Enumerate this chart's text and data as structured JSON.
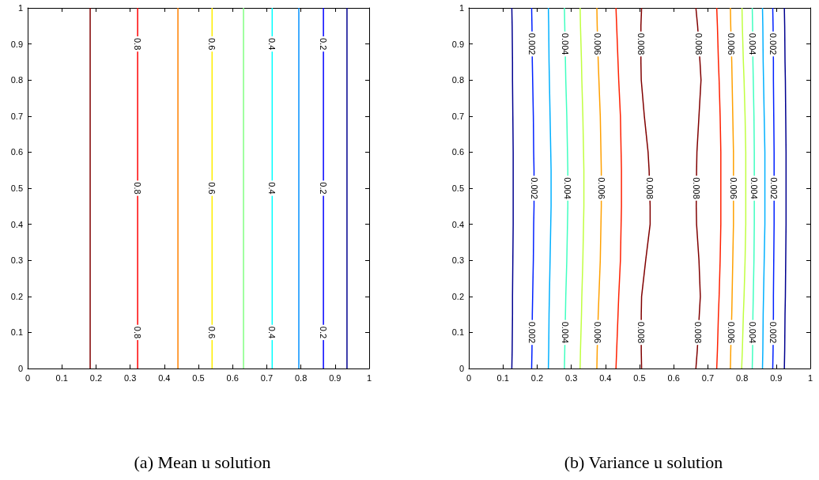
{
  "chart_data": [
    {
      "type": "line",
      "title": "(a) Mean u solution",
      "xlim": [
        0,
        1
      ],
      "ylim": [
        0,
        1
      ],
      "xticks": [
        0,
        0.1,
        0.2,
        0.3,
        0.4,
        0.5,
        0.6,
        0.7,
        0.8,
        0.9,
        1
      ],
      "yticks": [
        0,
        0.1,
        0.2,
        0.3,
        0.4,
        0.5,
        0.6,
        0.7,
        0.8,
        0.9,
        1
      ],
      "grid": false,
      "legend": false,
      "series": [
        {
          "color": "#800000",
          "x": [
            0.183,
            0.183,
            0.183,
            0.183,
            0.183,
            0.183,
            0.183,
            0.183
          ],
          "values": [
            0,
            0.05,
            0.15,
            0.45,
            0.55,
            0.85,
            0.95,
            1
          ]
        },
        {
          "name": "0.8",
          "color": "#ff0000",
          "x": [
            0.322,
            0.322,
            0.322,
            0.322,
            0.322,
            0.322,
            0.322,
            0.322
          ],
          "values": [
            0,
            0.05,
            0.15,
            0.45,
            0.55,
            0.85,
            0.95,
            1
          ]
        },
        {
          "color": "#ff8000",
          "x": [
            0.44,
            0.44,
            0.44,
            0.44,
            0.44,
            0.44,
            0.44,
            0.44
          ],
          "values": [
            0,
            0.05,
            0.15,
            0.45,
            0.55,
            0.85,
            0.95,
            1
          ]
        },
        {
          "name": "0.6",
          "color": "#ffee00",
          "x": [
            0.54,
            0.54,
            0.54,
            0.54,
            0.54,
            0.54,
            0.54,
            0.54
          ],
          "values": [
            0,
            0.05,
            0.15,
            0.45,
            0.55,
            0.85,
            0.95,
            1
          ]
        },
        {
          "color": "#80ff80",
          "x": [
            0.632,
            0.632,
            0.632,
            0.632,
            0.632,
            0.632,
            0.632,
            0.632
          ],
          "values": [
            0,
            0.05,
            0.15,
            0.45,
            0.55,
            0.85,
            0.95,
            1
          ]
        },
        {
          "name": "0.4",
          "color": "#00ffff",
          "x": [
            0.716,
            0.716,
            0.716,
            0.716,
            0.716,
            0.716,
            0.716,
            0.716
          ],
          "values": [
            0,
            0.05,
            0.15,
            0.45,
            0.55,
            0.85,
            0.95,
            1
          ]
        },
        {
          "color": "#0090ff",
          "x": [
            0.794,
            0.794,
            0.794,
            0.794,
            0.794,
            0.794,
            0.794,
            0.794
          ],
          "values": [
            0,
            0.05,
            0.15,
            0.45,
            0.55,
            0.85,
            0.95,
            1
          ]
        },
        {
          "name": "0.2",
          "color": "#0000ff",
          "x": [
            0.866,
            0.866,
            0.866,
            0.866,
            0.866,
            0.866,
            0.866,
            0.866
          ],
          "values": [
            0,
            0.05,
            0.15,
            0.45,
            0.55,
            0.85,
            0.95,
            1
          ]
        },
        {
          "color": "#000090",
          "x": [
            0.935,
            0.935,
            0.935,
            0.935,
            0.935,
            0.935,
            0.935,
            0.935
          ],
          "values": [
            0,
            0.05,
            0.15,
            0.45,
            0.55,
            0.85,
            0.95,
            1
          ]
        }
      ]
    },
    {
      "type": "line",
      "title": "(b) Variance u solution",
      "xlim": [
        0,
        1
      ],
      "ylim": [
        0,
        1
      ],
      "xticks": [
        0,
        0.1,
        0.2,
        0.3,
        0.4,
        0.5,
        0.6,
        0.7,
        0.8,
        0.9,
        1
      ],
      "yticks": [
        0,
        0.1,
        0.2,
        0.3,
        0.4,
        0.5,
        0.6,
        0.7,
        0.8,
        0.9,
        1
      ],
      "grid": false,
      "legend": false,
      "series": [
        {
          "color": "#00008f",
          "x": [
            0.126,
            0.127,
            0.128,
            0.128,
            0.129,
            0.13,
            0.13,
            0.13,
            0.13,
            0.129,
            0.128,
            0.128,
            0.127,
            0.126
          ],
          "values": [
            0,
            0.05,
            0.15,
            0.2,
            0.3,
            0.4,
            0.45,
            0.55,
            0.6,
            0.7,
            0.8,
            0.85,
            0.95,
            1
          ]
        },
        {
          "name": "0.002",
          "color": "#0020ff",
          "x": [
            0.184,
            0.185,
            0.186,
            0.187,
            0.189,
            0.19,
            0.191,
            0.191,
            0.19,
            0.189,
            0.187,
            0.186,
            0.185,
            0.184
          ],
          "values": [
            0,
            0.05,
            0.15,
            0.2,
            0.3,
            0.4,
            0.45,
            0.55,
            0.6,
            0.7,
            0.8,
            0.85,
            0.95,
            1
          ]
        },
        {
          "color": "#00b0ff",
          "x": [
            0.233,
            0.234,
            0.235,
            0.236,
            0.238,
            0.24,
            0.241,
            0.241,
            0.24,
            0.238,
            0.236,
            0.235,
            0.234,
            0.233
          ],
          "values": [
            0,
            0.05,
            0.15,
            0.2,
            0.3,
            0.4,
            0.45,
            0.55,
            0.6,
            0.7,
            0.8,
            0.85,
            0.95,
            1
          ]
        },
        {
          "name": "0.004",
          "color": "#40ffc0",
          "x": [
            0.28,
            0.281,
            0.283,
            0.284,
            0.287,
            0.289,
            0.29,
            0.29,
            0.289,
            0.287,
            0.284,
            0.283,
            0.281,
            0.28
          ],
          "values": [
            0,
            0.05,
            0.15,
            0.2,
            0.3,
            0.4,
            0.45,
            0.55,
            0.6,
            0.7,
            0.8,
            0.85,
            0.95,
            1
          ]
        },
        {
          "color": "#c0ff40",
          "x": [
            0.326,
            0.327,
            0.33,
            0.331,
            0.334,
            0.336,
            0.337,
            0.337,
            0.336,
            0.334,
            0.331,
            0.33,
            0.327,
            0.326
          ],
          "values": [
            0,
            0.05,
            0.15,
            0.2,
            0.3,
            0.4,
            0.45,
            0.55,
            0.6,
            0.7,
            0.8,
            0.85,
            0.95,
            1
          ]
        },
        {
          "name": "0.006",
          "color": "#ffa000",
          "x": [
            0.375,
            0.376,
            0.379,
            0.381,
            0.385,
            0.387,
            0.388,
            0.388,
            0.387,
            0.385,
            0.381,
            0.379,
            0.376,
            0.375
          ],
          "values": [
            0,
            0.05,
            0.15,
            0.2,
            0.3,
            0.4,
            0.45,
            0.55,
            0.6,
            0.7,
            0.8,
            0.85,
            0.95,
            1
          ]
        },
        {
          "color": "#ff2000",
          "x": [
            0.431,
            0.433,
            0.437,
            0.439,
            0.444,
            0.446,
            0.447,
            0.447,
            0.446,
            0.444,
            0.439,
            0.437,
            0.433,
            0.431
          ],
          "values": [
            0,
            0.05,
            0.15,
            0.2,
            0.3,
            0.4,
            0.45,
            0.55,
            0.6,
            0.7,
            0.8,
            0.85,
            0.95,
            1
          ]
        },
        {
          "name": "0.008",
          "color": "#800000",
          "x": [
            0.506,
            0.505,
            0.505,
            0.506,
            0.518,
            0.531,
            0.531,
            0.528,
            0.525,
            0.514,
            0.505,
            0.504,
            0.504,
            0.506
          ],
          "values": [
            0,
            0.05,
            0.15,
            0.2,
            0.3,
            0.4,
            0.45,
            0.55,
            0.6,
            0.7,
            0.8,
            0.85,
            0.95,
            1
          ]
        },
        {
          "name": "0.008",
          "color": "#800000",
          "x": [
            0.665,
            0.669,
            0.675,
            0.678,
            0.674,
            0.667,
            0.666,
            0.667,
            0.668,
            0.674,
            0.68,
            0.677,
            0.67,
            0.665
          ],
          "values": [
            0,
            0.05,
            0.15,
            0.2,
            0.3,
            0.4,
            0.45,
            0.55,
            0.6,
            0.7,
            0.8,
            0.85,
            0.95,
            1
          ]
        },
        {
          "color": "#ff2000",
          "x": [
            0.726,
            0.728,
            0.731,
            0.733,
            0.736,
            0.738,
            0.738,
            0.738,
            0.738,
            0.736,
            0.733,
            0.731,
            0.728,
            0.726
          ],
          "values": [
            0,
            0.05,
            0.15,
            0.2,
            0.3,
            0.4,
            0.45,
            0.55,
            0.6,
            0.7,
            0.8,
            0.85,
            0.95,
            1
          ]
        },
        {
          "name": "0.006",
          "color": "#ffa000",
          "x": [
            0.766,
            0.767,
            0.77,
            0.771,
            0.773,
            0.775,
            0.775,
            0.775,
            0.775,
            0.773,
            0.771,
            0.77,
            0.767,
            0.766
          ],
          "values": [
            0,
            0.05,
            0.15,
            0.2,
            0.3,
            0.4,
            0.45,
            0.55,
            0.6,
            0.7,
            0.8,
            0.85,
            0.95,
            1
          ]
        },
        {
          "color": "#c0ff40",
          "x": [
            0.799,
            0.801,
            0.804,
            0.806,
            0.809,
            0.811,
            0.811,
            0.811,
            0.811,
            0.809,
            0.806,
            0.804,
            0.801,
            0.8
          ],
          "values": [
            0,
            0.05,
            0.15,
            0.2,
            0.3,
            0.4,
            0.45,
            0.55,
            0.6,
            0.7,
            0.8,
            0.85,
            0.95,
            1
          ]
        },
        {
          "name": "0.004",
          "color": "#40ffc0",
          "x": [
            0.83,
            0.831,
            0.832,
            0.833,
            0.835,
            0.836,
            0.836,
            0.836,
            0.836,
            0.835,
            0.833,
            0.832,
            0.831,
            0.83
          ],
          "values": [
            0,
            0.05,
            0.15,
            0.2,
            0.3,
            0.4,
            0.45,
            0.55,
            0.6,
            0.7,
            0.8,
            0.85,
            0.95,
            1
          ]
        },
        {
          "color": "#00b0ff",
          "x": [
            0.86,
            0.861,
            0.862,
            0.863,
            0.865,
            0.867,
            0.867,
            0.867,
            0.867,
            0.865,
            0.863,
            0.862,
            0.861,
            0.86
          ],
          "values": [
            0,
            0.05,
            0.15,
            0.2,
            0.3,
            0.4,
            0.45,
            0.55,
            0.6,
            0.7,
            0.8,
            0.85,
            0.95,
            1
          ]
        },
        {
          "name": "0.002",
          "color": "#0020ff",
          "x": [
            0.89,
            0.891,
            0.892,
            0.892,
            0.893,
            0.894,
            0.894,
            0.894,
            0.894,
            0.893,
            0.892,
            0.892,
            0.891,
            0.89
          ],
          "values": [
            0,
            0.05,
            0.15,
            0.2,
            0.3,
            0.4,
            0.45,
            0.55,
            0.6,
            0.7,
            0.8,
            0.85,
            0.95,
            1
          ]
        },
        {
          "color": "#00008f",
          "x": [
            0.924,
            0.925,
            0.926,
            0.927,
            0.928,
            0.929,
            0.929,
            0.929,
            0.929,
            0.928,
            0.927,
            0.926,
            0.925,
            0.924
          ],
          "values": [
            0,
            0.05,
            0.15,
            0.2,
            0.3,
            0.4,
            0.45,
            0.55,
            0.6,
            0.7,
            0.8,
            0.85,
            0.95,
            1
          ]
        }
      ]
    }
  ]
}
